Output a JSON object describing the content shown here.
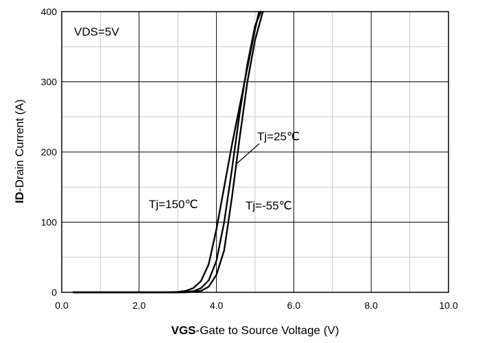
{
  "chart_data": {
    "type": "line",
    "xlabel_bold": "VGS",
    "xlabel_rest": "-Gate to Source Voltage (V)",
    "ylabel_bold": "ID",
    "ylabel_rest": "-Drain Current (A)",
    "xlim": [
      0,
      10
    ],
    "ylim": [
      0,
      400
    ],
    "x_ticks": [
      "0.0",
      "2.0",
      "4.0",
      "6.0",
      "8.0",
      "10.0"
    ],
    "y_ticks": [
      "0",
      "100",
      "200",
      "300",
      "400"
    ],
    "grid": true,
    "annotations": {
      "condition": "VDS=5V",
      "label_150": "Tj=150℃",
      "label_25": "Tj=25℃",
      "label_m55": "Tj=-55℃"
    },
    "series": [
      {
        "name": "Tj=150℃",
        "x": [
          0.3,
          2.6,
          3.0,
          3.2,
          3.4,
          3.6,
          3.8,
          4.0,
          4.2,
          4.4,
          4.6,
          4.8,
          5.0,
          5.1
        ],
        "y": [
          0,
          0,
          0.5,
          2,
          6,
          16,
          40,
          90,
          150,
          210,
          265,
          320,
          375,
          400
        ]
      },
      {
        "name": "Tj=25℃",
        "x": [
          0.3,
          3.0,
          3.4,
          3.6,
          3.8,
          4.0,
          4.2,
          4.4,
          4.6,
          4.8,
          5.0,
          5.15
        ],
        "y": [
          0,
          0,
          1.5,
          6,
          17,
          45,
          100,
          175,
          255,
          325,
          380,
          400
        ]
      },
      {
        "name": "Tj=-55℃",
        "x": [
          0.3,
          3.2,
          3.6,
          3.8,
          4.0,
          4.2,
          4.4,
          4.6,
          4.8,
          5.0,
          5.2
        ],
        "y": [
          0,
          0,
          2,
          8,
          25,
          60,
          135,
          220,
          300,
          360,
          400
        ]
      }
    ]
  }
}
